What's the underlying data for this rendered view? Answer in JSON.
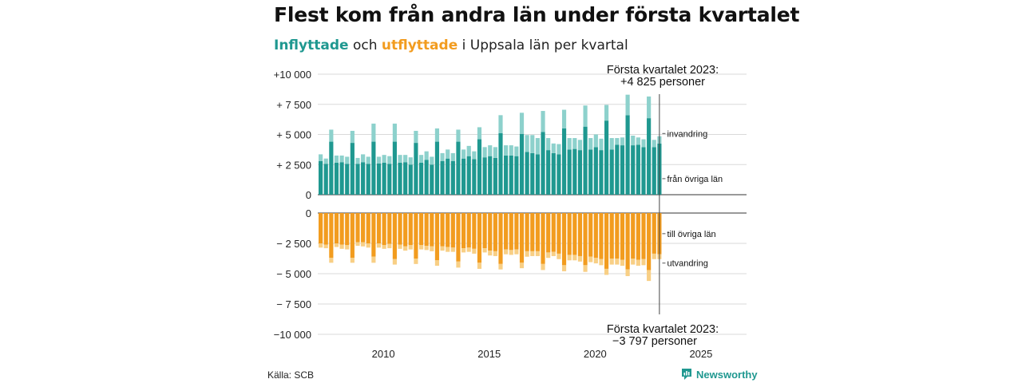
{
  "title": "Flest kom från andra län under första kvartalet",
  "subtitle": {
    "part1": "Inflyttade",
    "part2": " och ",
    "part3": "utflyttade",
    "part4": " i Uppsala län per kvartal"
  },
  "source": "Källa: SCB",
  "brand": "Newsworthy",
  "colors": {
    "in_dark": "#1f9890",
    "in_light": "#8dd1cc",
    "out_dark": "#f29c1f",
    "out_light": "#f8cf85",
    "brand": "#1f9890"
  },
  "chart_data": [
    {
      "type": "bar",
      "stacked": true,
      "panel": "inflyttade",
      "y_ticks": [
        "+10 000",
        "+ 7 500",
        "+ 5 000",
        "+ 2 500",
        "0"
      ],
      "y_tick_values": [
        10000,
        7500,
        5000,
        2500,
        0
      ],
      "ylim": [
        0,
        10000
      ],
      "x_ticks": [
        2010,
        2015,
        2020,
        2025
      ],
      "xlim": [
        2007,
        2027.25
      ],
      "x_start": 2007,
      "grid": true,
      "series": [
        {
          "name": "från övriga län",
          "color": "#1f9890",
          "values": [
            2800,
            2550,
            4400,
            2650,
            2700,
            2550,
            4300,
            2550,
            2700,
            2550,
            4400,
            2600,
            2650,
            2550,
            4400,
            2650,
            2700,
            2500,
            4300,
            2650,
            2900,
            2500,
            4400,
            2800,
            3000,
            2800,
            4400,
            3000,
            3200,
            2950,
            4600,
            3100,
            3200,
            3050,
            5100,
            3250,
            3250,
            3200,
            5050,
            3550,
            3450,
            3350,
            5200,
            3700,
            3450,
            3350,
            5500,
            3750,
            3800,
            3700,
            5650,
            3750,
            3950,
            3700,
            6150,
            3750,
            4150,
            4100,
            6600,
            4100,
            4150,
            3950,
            6350,
            3950,
            4250
          ]
        },
        {
          "name": "invandring",
          "color": "#8dd1cc",
          "values": [
            550,
            450,
            1000,
            600,
            550,
            600,
            1000,
            500,
            650,
            600,
            1500,
            550,
            650,
            650,
            1500,
            650,
            600,
            600,
            1000,
            650,
            700,
            650,
            1100,
            650,
            750,
            650,
            1000,
            750,
            850,
            650,
            1000,
            850,
            900,
            900,
            1500,
            850,
            850,
            800,
            1750,
            1400,
            1500,
            1350,
            1750,
            1000,
            800,
            850,
            1550,
            950,
            900,
            850,
            1750,
            950,
            1050,
            950,
            1300,
            950,
            550,
            650,
            1700,
            800,
            600,
            650,
            1800,
            600,
            600
          ]
        }
      ],
      "annotation": [
        "Första kvartalet 2023:",
        "+4 825 personer"
      ]
    },
    {
      "type": "bar",
      "stacked": true,
      "panel": "utflyttade",
      "y_ticks": [
        "0",
        "− 2 500",
        "− 5 000",
        "− 7 500",
        "−10 000"
      ],
      "y_tick_values": [
        0,
        -2500,
        -5000,
        -7500,
        -10000
      ],
      "ylim": [
        -10000,
        0
      ],
      "x_ticks": [
        2010,
        2015,
        2020,
        2025
      ],
      "xlim": [
        2007,
        2027.25
      ],
      "x_start": 2007,
      "grid": true,
      "series": [
        {
          "name": "till övriga län",
          "color": "#f29c1f",
          "values": [
            -2500,
            -2600,
            -3700,
            -2500,
            -2600,
            -2650,
            -3700,
            -2400,
            -2400,
            -2500,
            -3600,
            -2500,
            -2650,
            -2550,
            -3800,
            -2600,
            -2750,
            -2650,
            -3750,
            -2650,
            -2700,
            -2750,
            -3900,
            -2750,
            -2800,
            -2850,
            -4000,
            -2900,
            -2850,
            -2950,
            -4100,
            -2900,
            -3100,
            -3150,
            -4200,
            -3000,
            -3050,
            -3000,
            -4100,
            -3150,
            -3150,
            -3150,
            -4200,
            -3250,
            -3200,
            -3350,
            -4300,
            -3450,
            -3450,
            -3550,
            -4300,
            -3600,
            -3700,
            -3800,
            -4600,
            -3750,
            -3750,
            -3850,
            -4650,
            -3750,
            -3850,
            -3800,
            -4700,
            -3350,
            -3400
          ]
        },
        {
          "name": "utvandring",
          "color": "#f8cf85",
          "values": [
            -350,
            -300,
            -400,
            -300,
            -350,
            -350,
            -400,
            -300,
            -350,
            -350,
            -500,
            -350,
            -300,
            -350,
            -450,
            -350,
            -350,
            -350,
            -450,
            -350,
            -350,
            -400,
            -450,
            -350,
            -400,
            -350,
            -500,
            -350,
            -350,
            -400,
            -500,
            -350,
            -400,
            -400,
            -450,
            -400,
            -400,
            -400,
            -450,
            -450,
            -400,
            -400,
            -500,
            -450,
            -350,
            -450,
            -500,
            -450,
            -450,
            -450,
            -550,
            -450,
            -450,
            -500,
            -500,
            -500,
            -500,
            -500,
            -550,
            -500,
            -500,
            -500,
            -900,
            -450,
            -400
          ]
        }
      ],
      "annotation": [
        "Första kvartalet 2023:",
        "−3 797 personer"
      ]
    }
  ]
}
